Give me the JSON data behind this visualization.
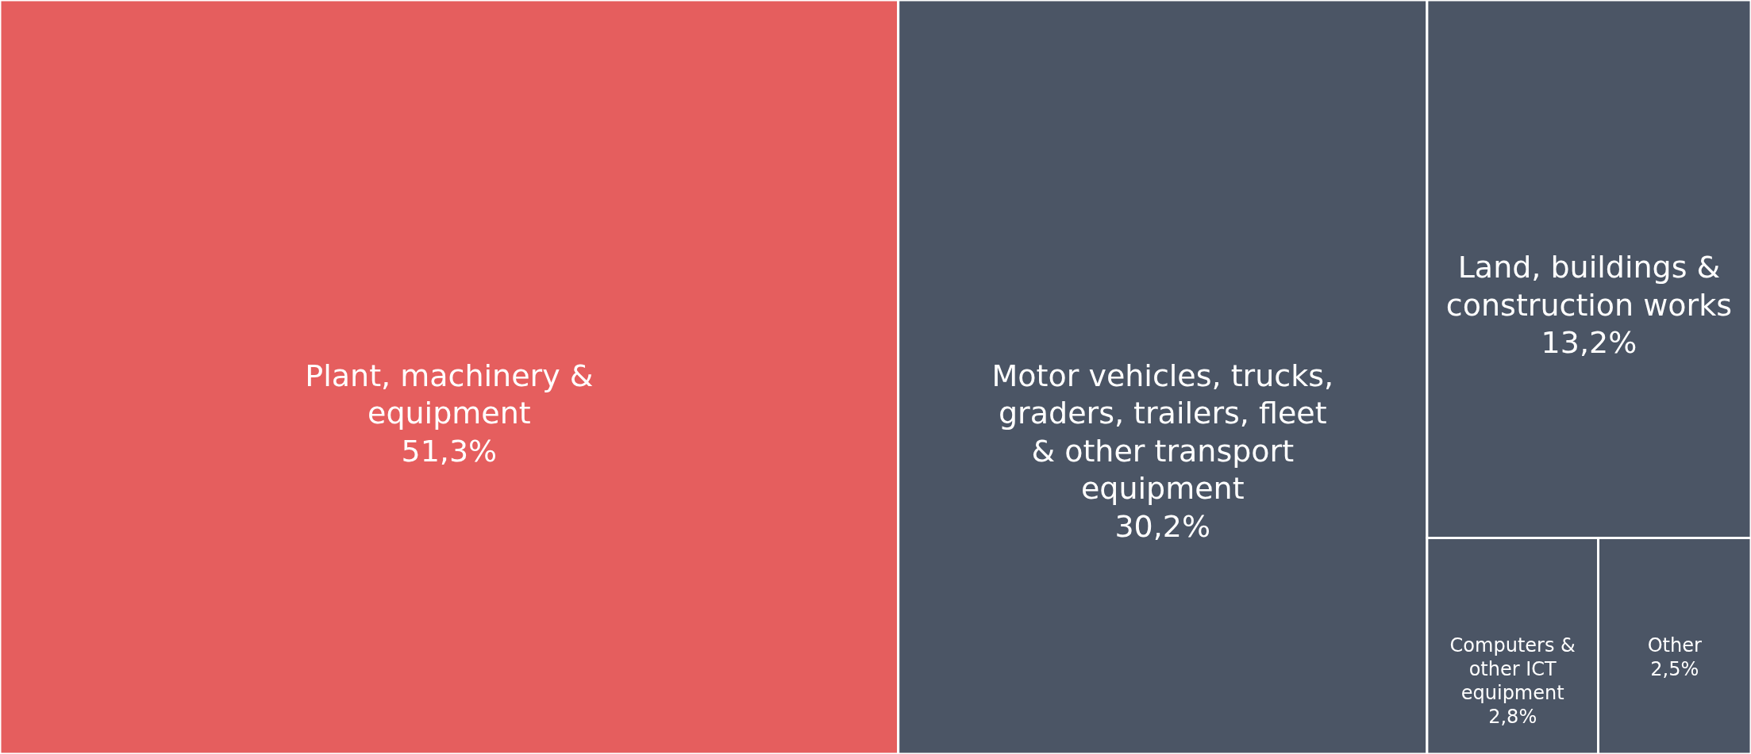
{
  "chart_data": {
    "type": "other",
    "categories": [
      "Plant, machinery & equipment",
      "Motor vehicles, trucks, graders, trailers, fleet & other transport equipment",
      "Land, buildings & construction works",
      "Computers & other ICT equipment",
      "Other"
    ],
    "values": [
      51.3,
      30.2,
      13.2,
      2.8,
      2.5
    ],
    "value_labels": [
      "51,3%",
      "30,2%",
      "13,2%",
      "2,8%",
      "2,5%"
    ],
    "colors": [
      "#e55e5e",
      "#4b5565",
      "#4b5565",
      "#4b5565",
      "#4b5565"
    ]
  }
}
